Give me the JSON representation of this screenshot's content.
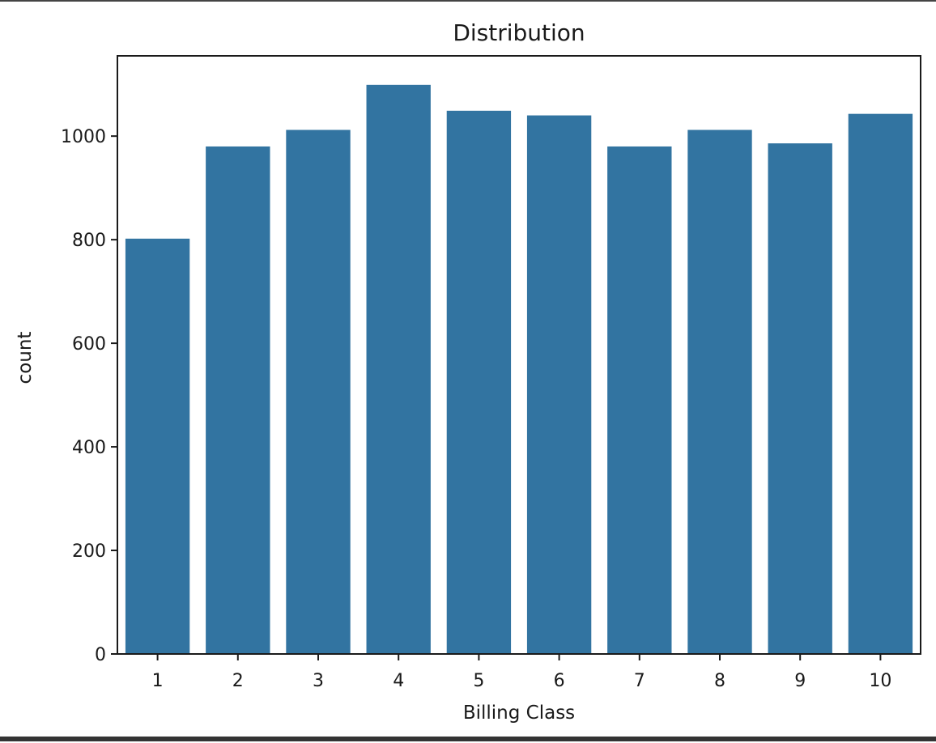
{
  "chart_data": {
    "type": "bar",
    "title": "Distribution",
    "xlabel": "Billing Class",
    "ylabel": "count",
    "categories": [
      "1",
      "2",
      "3",
      "4",
      "5",
      "6",
      "7",
      "8",
      "9",
      "10"
    ],
    "values": [
      802,
      980,
      1012,
      1099,
      1049,
      1040,
      980,
      1012,
      986,
      1043
    ],
    "ylim": [
      0,
      1155
    ],
    "yticks": [
      0,
      200,
      400,
      600,
      800,
      1000
    ],
    "ytick_labels": [
      "0",
      "200",
      "400",
      "600",
      "800",
      "1000"
    ],
    "grid": false,
    "bar_color": "#3274a1"
  }
}
